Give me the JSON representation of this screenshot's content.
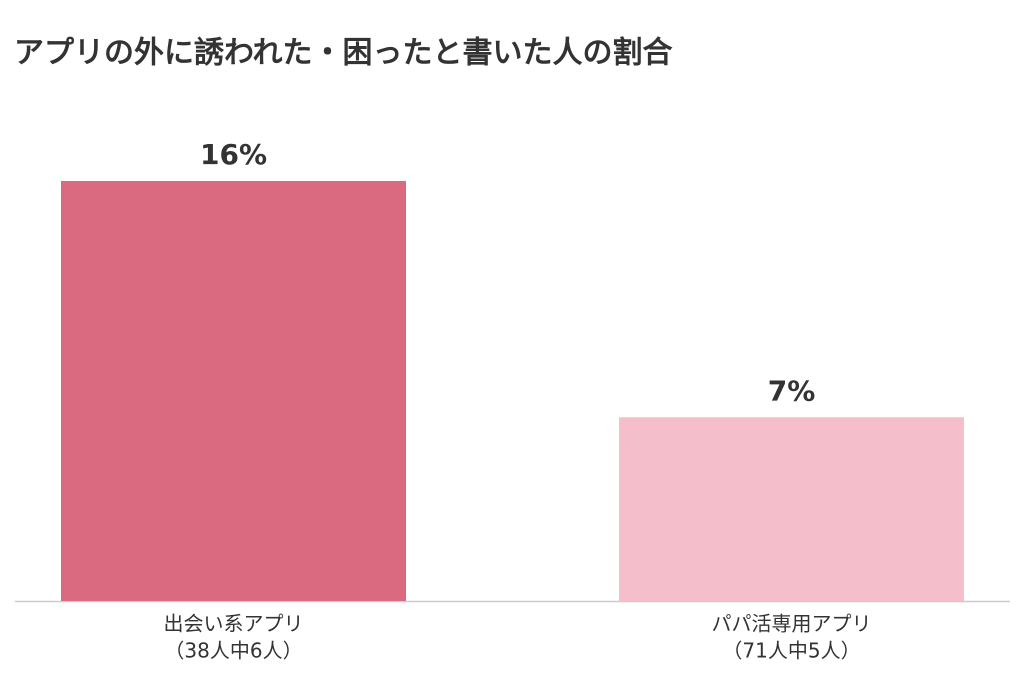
{
  "chart_data": {
    "type": "bar",
    "title": "アプリの外に誘われた・困ったと書いた人の割合",
    "categories": [
      "出会い系アプリ",
      "パパ活専用アプリ"
    ],
    "category_notes": [
      "（38人中6人）",
      "（71人中5人）"
    ],
    "values": [
      16,
      7
    ],
    "value_labels": [
      "16%",
      "7%"
    ],
    "colors": [
      "#d96a80",
      "#f4bfcb"
    ],
    "ylim": [
      0,
      20
    ]
  }
}
